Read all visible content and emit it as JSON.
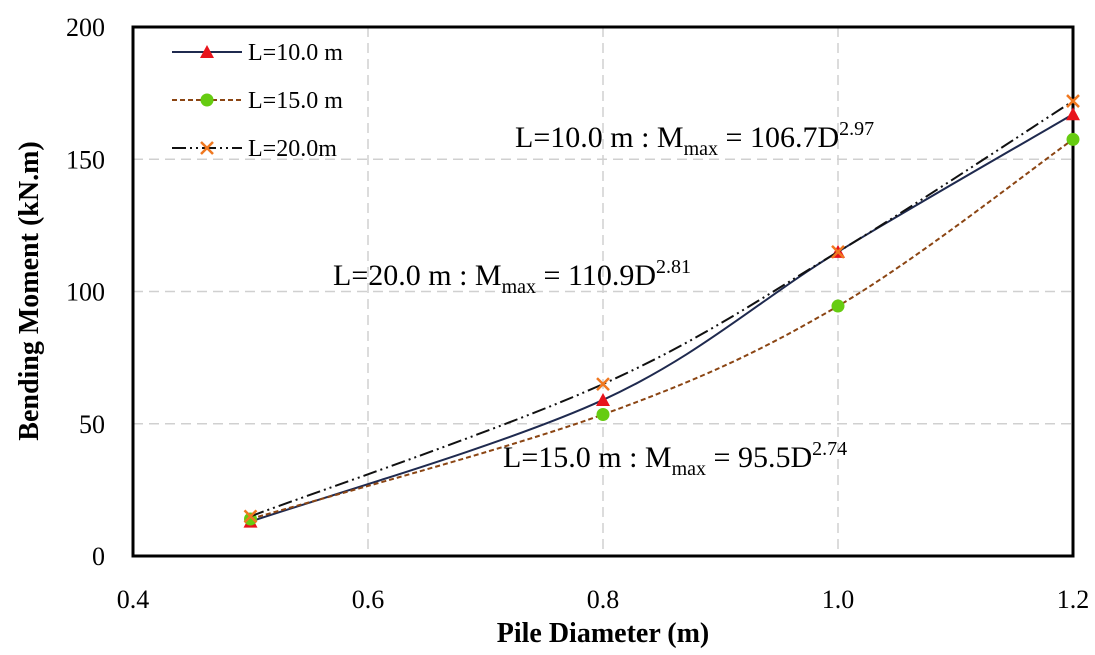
{
  "chart_data": {
    "type": "line",
    "x_label": "Pile Diameter (m)",
    "y_label": "Bending Moment (kN.m)",
    "x": [
      0.5,
      0.8,
      1.0,
      1.2
    ],
    "series": [
      {
        "name": "L=10.0 m",
        "color": "#1f2a4f",
        "marker_color": "#e8141c",
        "marker": "triangle",
        "dash": "solid",
        "values": [
          13,
          59,
          115,
          167
        ]
      },
      {
        "name": "L=15.0 m",
        "color": "#8b4513",
        "marker_color": "#66cc11",
        "marker": "circle",
        "dash": "dashed",
        "values": [
          14,
          53.5,
          94.5,
          157.5
        ]
      },
      {
        "name": "L=20.0m",
        "color": "#111111",
        "marker_color": "#f07820",
        "marker": "x",
        "dash": "dashdot",
        "values": [
          15,
          65,
          115,
          172
        ]
      }
    ],
    "xlim": [
      0.4,
      1.2
    ],
    "xticks": [
      0.4,
      0.6,
      0.8,
      {
        "value": 1,
        "label": "1.0"
      },
      1.2
    ],
    "ylim": [
      0,
      200
    ],
    "yticks": [
      0,
      50,
      100,
      150,
      200
    ],
    "grid": true,
    "legend": "upper-left",
    "annotations": [
      {
        "text": "L=10.0 m : M",
        "sub": "max",
        "rest": " = 106.7D",
        "sup": "2.97"
      },
      {
        "text": "L=20.0 m : M",
        "sub": "max",
        "rest": " = 110.9D",
        "sup": "2.81"
      },
      {
        "text": "L=15.0 m : M",
        "sub": "max",
        "rest": " = 95.5D",
        "sup": "2.74"
      }
    ]
  }
}
